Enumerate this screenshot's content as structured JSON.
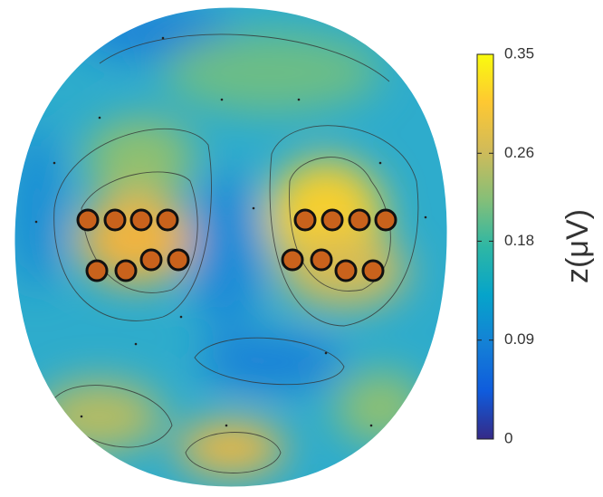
{
  "chart_data": {
    "type": "topomap",
    "colorbar_label": "z(μV)",
    "clim": [
      0,
      0.35
    ],
    "cticks": [
      0,
      0.09,
      0.18,
      0.26,
      0.35
    ],
    "colormap": [
      "#352a87",
      "#0f5cdd",
      "#1481d6",
      "#06a4ca",
      "#2eb7a4",
      "#87bf77",
      "#d1bb59",
      "#fec832",
      "#f9fb0e"
    ]
  }
}
